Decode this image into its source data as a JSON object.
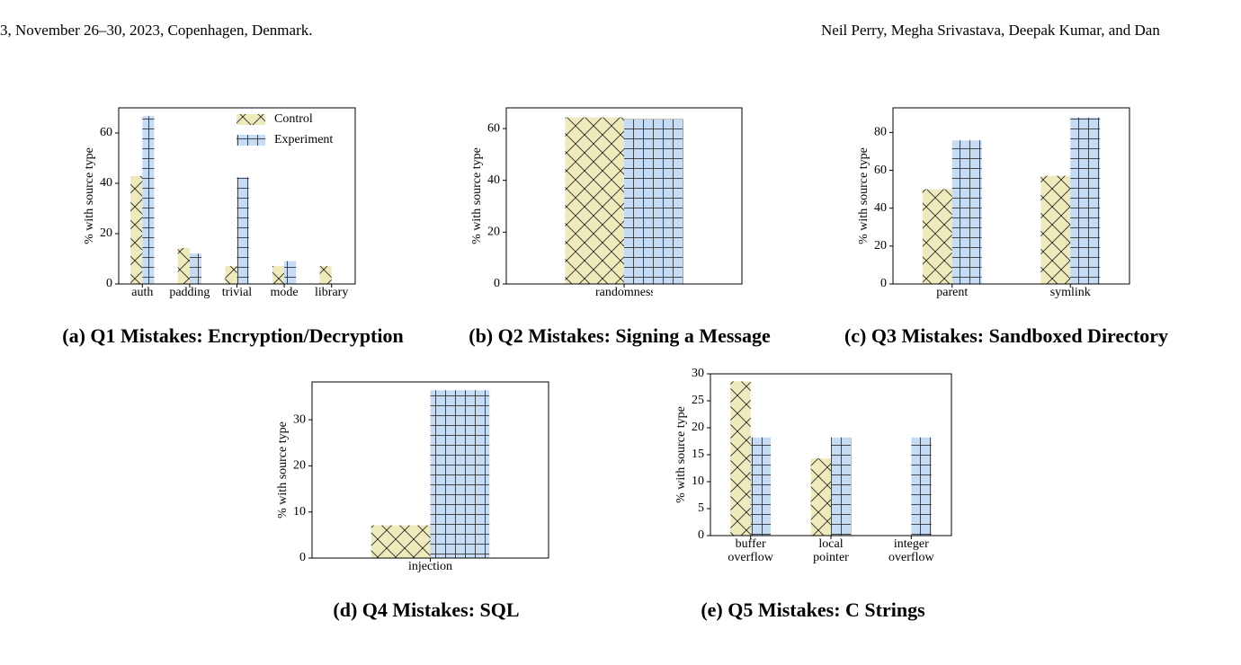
{
  "header": {
    "left": "3, November 26–30, 2023, Copenhagen, Denmark.",
    "right": "Neil Perry, Megha Srivastava, Deepak Kumar, and Dan"
  },
  "chart_data": [
    {
      "type": "bar",
      "caption": "(a) Q1 Mistakes: Encryption/Decryption",
      "ylabel": "% with source type",
      "categories": [
        "auth",
        "padding",
        "trivial",
        "mode",
        "library"
      ],
      "series": [
        {
          "name": "Control",
          "color": "#eeeabb",
          "hatch": "x",
          "values": [
            42.9,
            14.3,
            7.1,
            7.1,
            7.1
          ]
        },
        {
          "name": "Experiment",
          "color": "#c6dcf5",
          "hatch": "+",
          "values": [
            66.7,
            12.1,
            42.4,
            9.1,
            0
          ]
        }
      ],
      "ylim": [
        0,
        70
      ],
      "yticks": [
        0,
        20,
        40,
        60
      ],
      "legend": "upper right"
    },
    {
      "type": "bar",
      "caption": "(b) Q2 Mistakes: Signing a Message",
      "ylabel": "% with source type",
      "categories": [
        "randomness"
      ],
      "series": [
        {
          "color": "#eeeabb",
          "hatch": "x",
          "values": [
            64.3
          ]
        },
        {
          "color": "#c6dcf5",
          "hatch": "+",
          "values": [
            63.6
          ]
        }
      ],
      "ylim": [
        0,
        68
      ],
      "yticks": [
        0,
        20,
        40,
        60
      ]
    },
    {
      "type": "bar",
      "caption": "(c) Q3 Mistakes: Sandboxed Directory",
      "ylabel": "% with source type",
      "categories": [
        "parent",
        "symlink"
      ],
      "series": [
        {
          "color": "#eeeabb",
          "hatch": "x",
          "values": [
            50,
            57.1
          ]
        },
        {
          "color": "#c6dcf5",
          "hatch": "+",
          "values": [
            75.8,
            87.9
          ]
        }
      ],
      "ylim": [
        0,
        93
      ],
      "yticks": [
        0,
        20,
        40,
        60,
        80
      ]
    },
    {
      "type": "bar",
      "caption": "(d) Q4 Mistakes: SQL",
      "ylabel": "% with source type",
      "categories": [
        "injection"
      ],
      "series": [
        {
          "color": "#eeeabb",
          "hatch": "x",
          "values": [
            7.1
          ]
        },
        {
          "color": "#c6dcf5",
          "hatch": "+",
          "values": [
            36.4
          ]
        }
      ],
      "ylim": [
        0,
        38.2
      ],
      "yticks": [
        0,
        10,
        20,
        30
      ]
    },
    {
      "type": "bar",
      "caption": "(e) Q5 Mistakes: C Strings",
      "ylabel": "% with source type",
      "categories": [
        "buffer overflow",
        "local pointer",
        "integer overflow"
      ],
      "series": [
        {
          "color": "#eeeabb",
          "hatch": "x",
          "values": [
            28.6,
            14.3,
            0
          ]
        },
        {
          "color": "#c6dcf5",
          "hatch": "+",
          "values": [
            18.2,
            18.2,
            18.2
          ]
        }
      ],
      "ylim": [
        0,
        30
      ],
      "yticks": [
        0,
        5,
        10,
        15,
        20,
        25,
        30
      ]
    }
  ]
}
